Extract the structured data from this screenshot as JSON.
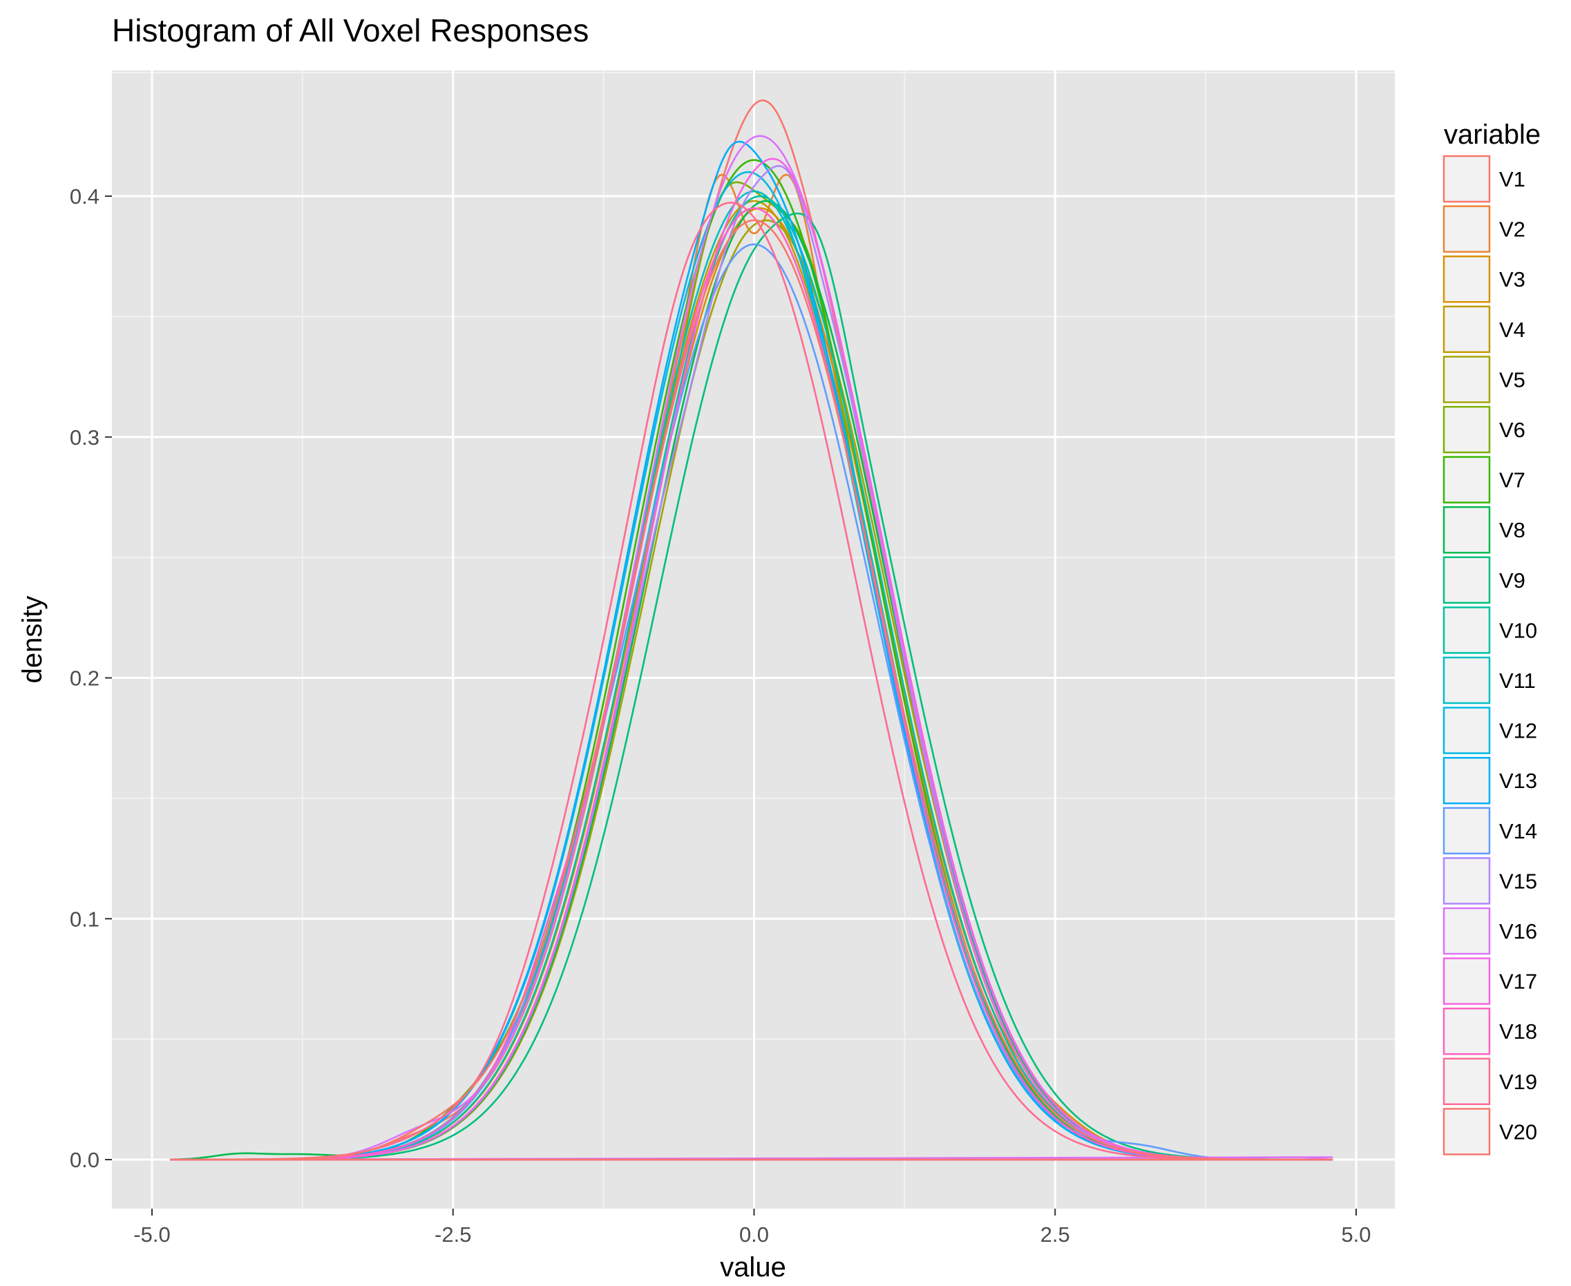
{
  "colors": {
    "panel_background": "#e5e5e5",
    "grid_major": "#ffffff",
    "grid_minor": "#f2f2f2",
    "legend_key_background": "#f2f2f2",
    "tick": "#333333"
  },
  "chart_data": {
    "type": "line",
    "title": "Histogram of All Voxel Responses",
    "xlabel": "value",
    "ylabel": "density",
    "xlim": [
      -5.0,
      5.0
    ],
    "ylim": [
      0.0,
      0.45
    ],
    "x_ticks": [
      -5.0,
      -2.5,
      0.0,
      2.5,
      5.0
    ],
    "x_tick_labels": [
      "-5.0",
      "-2.5",
      "0.0",
      "2.5",
      "5.0"
    ],
    "y_ticks": [
      0.0,
      0.1,
      0.2,
      0.3,
      0.4
    ],
    "y_tick_labels": [
      "0.0",
      "0.1",
      "0.2",
      "0.3",
      "0.4"
    ],
    "grid": true,
    "legend_title": "variable",
    "legend_position": "right",
    "x_range_of_curves": [
      -4.85,
      4.8
    ],
    "series": [
      {
        "name": "V1",
        "color": "#F8766D",
        "mu": 0.05,
        "sigma": 1.0,
        "peak": 0.42,
        "bumps": [
          [
            0.1,
            0.02,
            0.25
          ],
          [
            -2.8,
            0.004,
            0.3
          ]
        ]
      },
      {
        "name": "V2",
        "color": "#EA8331",
        "mu": 0.0,
        "sigma": 1.0,
        "peak": 0.4,
        "bumps": [
          [
            -0.3,
            0.03,
            0.2
          ],
          [
            0.3,
            0.03,
            0.2
          ],
          [
            0.0,
            -0.035,
            0.15
          ]
        ]
      },
      {
        "name": "V3",
        "color": "#D89000",
        "mu": 0.05,
        "sigma": 1.0,
        "peak": 0.395,
        "bumps": [
          [
            2.5,
            0.004,
            0.3
          ]
        ]
      },
      {
        "name": "V4",
        "color": "#C09B00",
        "mu": 0.0,
        "sigma": 1.0,
        "peak": 0.398,
        "bumps": [
          [
            2.6,
            0.003,
            0.3
          ]
        ]
      },
      {
        "name": "V5",
        "color": "#A3A500",
        "mu": 0.1,
        "sigma": 1.0,
        "peak": 0.39,
        "bumps": []
      },
      {
        "name": "V6",
        "color": "#7CAE00",
        "mu": 0.0,
        "sigma": 1.0,
        "peak": 0.395,
        "bumps": [
          [
            -0.3,
            0.02,
            0.2
          ],
          [
            0.5,
            0.02,
            0.2
          ]
        ]
      },
      {
        "name": "V7",
        "color": "#39B600",
        "mu": 0.0,
        "sigma": 1.0,
        "peak": 0.415,
        "bumps": [
          [
            -2.4,
            0.004,
            0.3
          ]
        ]
      },
      {
        "name": "V8",
        "color": "#00BB4E",
        "mu": 0.1,
        "sigma": 1.0,
        "peak": 0.398,
        "bumps": [
          [
            -3.8,
            0.002,
            0.3
          ],
          [
            -4.3,
            0.002,
            0.2
          ]
        ]
      },
      {
        "name": "V9",
        "color": "#00BF7D",
        "mu": 0.2,
        "sigma": 1.0,
        "peak": 0.385,
        "bumps": [
          [
            0.55,
            0.02,
            0.2
          ]
        ]
      },
      {
        "name": "V10",
        "color": "#00C1A3",
        "mu": 0.05,
        "sigma": 1.0,
        "peak": 0.4,
        "bumps": []
      },
      {
        "name": "V11",
        "color": "#00BFC4",
        "mu": 0.0,
        "sigma": 1.0,
        "peak": 0.402,
        "bumps": []
      },
      {
        "name": "V12",
        "color": "#00B9E3",
        "mu": -0.05,
        "sigma": 1.0,
        "peak": 0.41,
        "bumps": []
      },
      {
        "name": "V13",
        "color": "#00ADFA",
        "mu": -0.05,
        "sigma": 1.0,
        "peak": 0.415,
        "bumps": [
          [
            -0.2,
            0.01,
            0.15
          ]
        ]
      },
      {
        "name": "V14",
        "color": "#619CFF",
        "mu": 0.0,
        "sigma": 1.0,
        "peak": 0.38,
        "bumps": [
          [
            -1.5,
            0.01,
            0.3
          ],
          [
            3.2,
            0.004,
            0.3
          ]
        ]
      },
      {
        "name": "V15",
        "color": "#AE87FF",
        "mu": 0.1,
        "sigma": 1.0,
        "peak": 0.405,
        "bumps": [
          [
            0.3,
            0.012,
            0.15
          ],
          [
            -0.5,
            -0.012,
            0.2
          ]
        ]
      },
      {
        "name": "V16",
        "color": "#DB72FB",
        "mu": 0.05,
        "sigma": 1.0,
        "peak": 0.425,
        "bumps": [
          [
            -2.8,
            0.006,
            0.3
          ],
          [
            4.8,
            0.001,
            0.1
          ]
        ]
      },
      {
        "name": "V17",
        "color": "#F564E3",
        "mu": 0.1,
        "sigma": 1.0,
        "peak": 0.41,
        "bumps": [
          [
            0.3,
            0.008,
            0.2
          ]
        ]
      },
      {
        "name": "V18",
        "color": "#FF61C3",
        "mu": 0.0,
        "sigma": 1.0,
        "peak": 0.395,
        "bumps": [
          [
            -1.7,
            0.008,
            0.2
          ]
        ]
      },
      {
        "name": "V19",
        "color": "#FF6C91",
        "mu": -0.15,
        "sigma": 1.0,
        "peak": 0.395,
        "bumps": [
          [
            -0.6,
            0.01,
            0.25
          ],
          [
            -2.2,
            -0.006,
            0.3
          ]
        ]
      },
      {
        "name": "V20",
        "color": "#F8766D",
        "mu": 0.0,
        "sigma": 1.02,
        "peak": 0.39,
        "bumps": [
          [
            -2.7,
            0.004,
            0.3
          ]
        ]
      }
    ]
  }
}
